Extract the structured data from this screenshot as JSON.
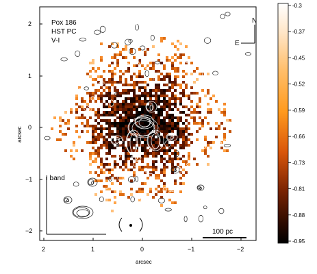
{
  "object_label": {
    "line1": "Pox 186",
    "line2": "HST PC",
    "line3": "V-I"
  },
  "compass": {
    "north": "N",
    "east": "E"
  },
  "inset_label": "I band",
  "scale_bar_label": "100 pc",
  "axes": {
    "xlabel": "arcsec",
    "ylabel": "arcsec",
    "x_ticks": [
      "2",
      "1",
      "0",
      "−1",
      "−2"
    ],
    "y_ticks": [
      "2",
      "1",
      "0",
      "−1",
      "−2"
    ]
  },
  "colorbar": {
    "ticks": [
      "-0.3",
      "-0.37",
      "-0.45",
      "-0.52",
      "-0.59",
      "-0.66",
      "-0.73",
      "-0.81",
      "-0.88",
      "-0.95"
    ]
  }
}
